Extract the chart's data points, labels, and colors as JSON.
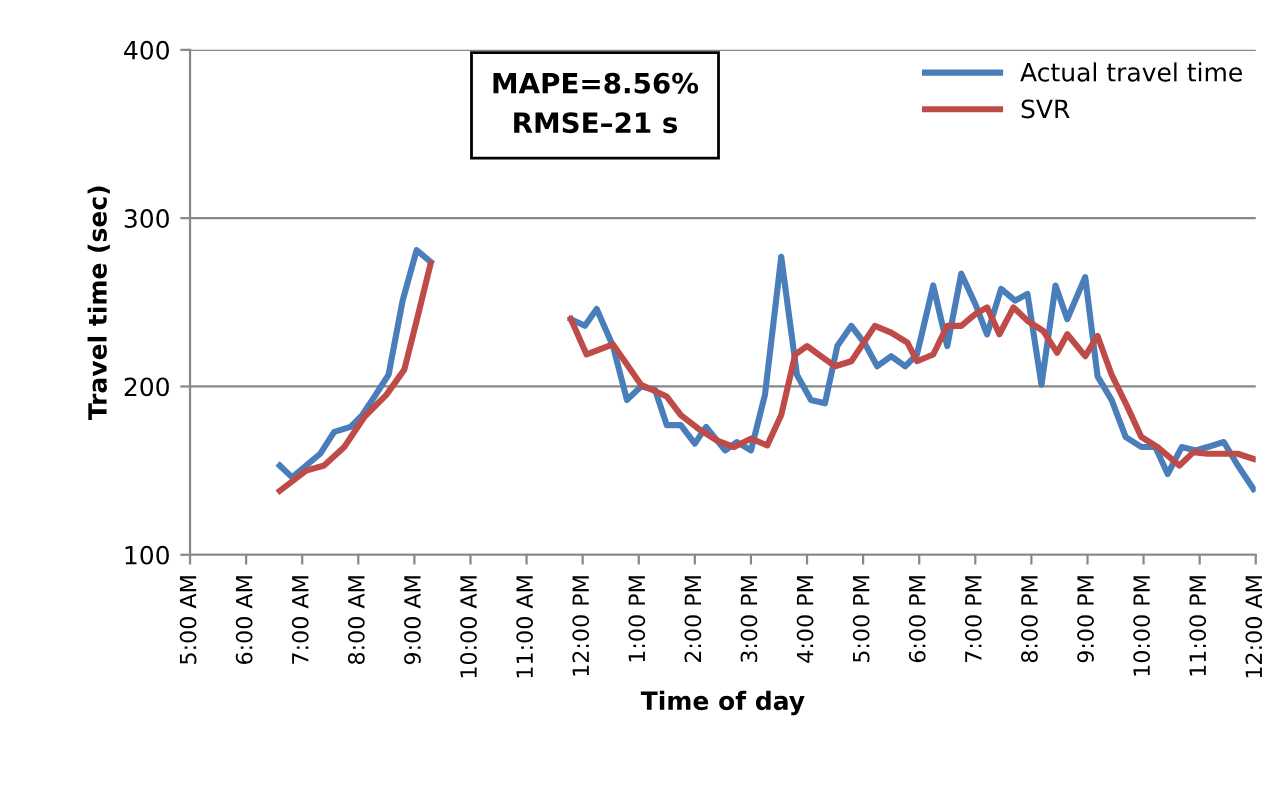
{
  "chart_data": {
    "type": "line",
    "xlabel": "Time of day",
    "ylabel": "Travel time (sec)",
    "annotations": [
      "MAPE=8.56%",
      "RMSE–21 s"
    ],
    "xlim": [
      5,
      24
    ],
    "ylim": [
      100,
      400
    ],
    "xticks": [
      {
        "value": 5,
        "label": "5:00 AM"
      },
      {
        "value": 6,
        "label": "6:00 AM"
      },
      {
        "value": 7,
        "label": "7:00 AM"
      },
      {
        "value": 8,
        "label": "8:00 AM"
      },
      {
        "value": 9,
        "label": "9:00 AM"
      },
      {
        "value": 10,
        "label": "10:00 AM"
      },
      {
        "value": 11,
        "label": "11:00 AM"
      },
      {
        "value": 12,
        "label": "12:00 PM"
      },
      {
        "value": 13,
        "label": "1:00 PM"
      },
      {
        "value": 14,
        "label": "2:00 PM"
      },
      {
        "value": 15,
        "label": "3:00 PM"
      },
      {
        "value": 16,
        "label": "4:00 PM"
      },
      {
        "value": 17,
        "label": "5:00 PM"
      },
      {
        "value": 18,
        "label": "6:00 PM"
      },
      {
        "value": 19,
        "label": "7:00 PM"
      },
      {
        "value": 20,
        "label": "8:00 PM"
      },
      {
        "value": 21,
        "label": "9:00 PM"
      },
      {
        "value": 22,
        "label": "10:00 PM"
      },
      {
        "value": 23,
        "label": "11:00 PM"
      },
      {
        "value": 24,
        "label": "12:00 AM"
      }
    ],
    "yticks": [
      100,
      200,
      300,
      400
    ],
    "grid": "y",
    "legend": "top right",
    "marker": "none",
    "line_style": "solid",
    "series": [
      {
        "name": "Actual travel time",
        "color": "#4a7ebb",
        "x": [
          6.6,
          6.82,
          7.32,
          7.57,
          7.86,
          8.07,
          8.29,
          8.54,
          8.79,
          9.04,
          9.29,
          10.5,
          11.79,
          12.04,
          12.25,
          12.54,
          12.79,
          13.04,
          13.29,
          13.5,
          13.75,
          14.0,
          14.2,
          14.54,
          14.75,
          15.0,
          15.25,
          15.54,
          15.82,
          16.07,
          16.32,
          16.54,
          16.79,
          17.04,
          17.25,
          17.5,
          17.75,
          17.96,
          18.25,
          18.5,
          18.75,
          19.0,
          19.21,
          19.46,
          19.71,
          19.93,
          20.18,
          20.43,
          20.64,
          20.96,
          21.18,
          21.43,
          21.68,
          21.96,
          22.21,
          22.43,
          22.68,
          22.93,
          23.14,
          23.43,
          23.68,
          23.96
        ],
        "values": [
          153,
          146,
          160,
          173,
          176,
          183,
          194,
          207,
          251,
          281,
          274,
          null,
          240,
          236,
          246,
          224,
          192,
          200,
          198,
          177,
          177,
          166,
          176,
          162,
          167,
          162,
          195,
          277,
          207,
          192,
          190,
          224,
          236,
          225,
          212,
          218,
          212,
          219,
          260,
          224,
          267,
          249,
          231,
          258,
          251,
          255,
          201,
          260,
          240,
          265,
          206,
          192,
          170,
          164,
          164,
          148,
          164,
          162,
          164,
          167,
          153,
          139
        ]
      },
      {
        "name": "SVR",
        "color": "#be4b48",
        "x": [
          6.6,
          7.07,
          7.39,
          7.75,
          8.11,
          8.5,
          8.82,
          9.04,
          9.29,
          10.5,
          11.79,
          12.07,
          12.54,
          12.79,
          13.04,
          13.5,
          13.75,
          14.1,
          14.39,
          14.7,
          15.0,
          15.29,
          15.54,
          15.79,
          16.0,
          16.25,
          16.5,
          16.79,
          17.21,
          17.5,
          17.79,
          17.96,
          18.25,
          18.5,
          18.75,
          19.0,
          19.21,
          19.43,
          19.68,
          19.93,
          20.21,
          20.46,
          20.64,
          20.96,
          21.18,
          21.43,
          21.71,
          21.96,
          22.25,
          22.64,
          22.89,
          23.14,
          23.43,
          23.68,
          23.96
        ],
        "values": [
          138,
          150,
          153,
          164,
          182,
          195,
          210,
          239,
          273,
          null,
          240,
          219,
          225,
          213,
          201,
          194,
          183,
          174,
          168,
          164,
          169,
          165,
          183,
          219,
          224,
          218,
          212,
          215,
          236,
          232,
          226,
          215,
          219,
          236,
          236,
          243,
          247,
          231,
          247,
          239,
          233,
          220,
          231,
          218,
          230,
          207,
          188,
          170,
          164,
          153,
          161,
          160,
          160,
          160,
          157
        ]
      }
    ]
  }
}
